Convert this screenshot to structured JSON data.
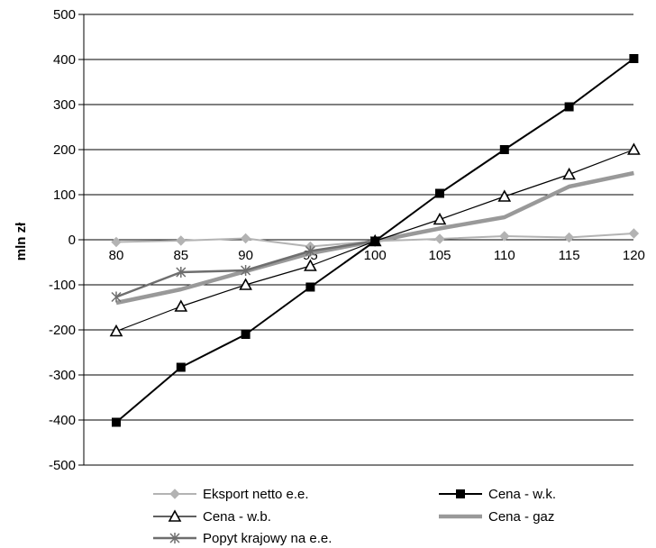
{
  "chart_data": {
    "type": "line",
    "ylabel": "mln zł",
    "x": [
      80,
      85,
      90,
      95,
      100,
      105,
      110,
      115,
      120
    ],
    "ylim": [
      -500,
      500
    ],
    "yticks": [
      -500,
      -400,
      -300,
      -200,
      -100,
      0,
      100,
      200,
      300,
      400,
      500
    ],
    "grid": true,
    "legend_position": "bottom",
    "series": [
      {
        "name": "Eksport netto e.e.",
        "color": "#b3b3b3",
        "marker": "diamond",
        "values": [
          -5,
          -2,
          3,
          -15,
          -3,
          2,
          8,
          5,
          14
        ]
      },
      {
        "name": "Cena - w.k.",
        "color": "#000000",
        "marker": "square",
        "values": [
          -405,
          -283,
          -210,
          -105,
          -3,
          103,
          200,
          295,
          402
        ]
      },
      {
        "name": "Cena - w.b.",
        "color": "#000000",
        "marker": "triangle",
        "values": [
          -203,
          -148,
          -100,
          -58,
          -3,
          45,
          96,
          145,
          200
        ]
      },
      {
        "name": "Cena - gaz",
        "color": "#999999",
        "marker": "none",
        "values": [
          -140,
          -110,
          -70,
          -30,
          -3,
          25,
          50,
          118,
          148
        ]
      },
      {
        "name": "Popyt krajowy na e.e.",
        "color": "#6e6e6e",
        "marker": "star",
        "values": [
          -127,
          -72,
          -68,
          -25,
          -3,
          null,
          null,
          null,
          null
        ]
      }
    ]
  }
}
